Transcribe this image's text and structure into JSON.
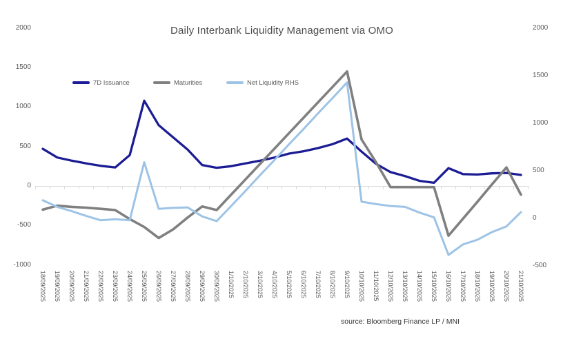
{
  "title": "Daily Interbank Liquidity Management via OMO",
  "footer": {
    "source": "source: Bloomberg Finance LP / MNI"
  },
  "colors": {
    "grid": "#d9d9d9",
    "axis_text": "#595959",
    "title_text": "#4d4d4d",
    "issuance": "#1c1c94",
    "maturities": "#808080",
    "net_liquidity": "#9dc3e6"
  },
  "chart_data": {
    "type": "line",
    "title": "Daily Interbank Liquidity Management via OMO",
    "xlabel": "",
    "ylabel_left": "",
    "ylabel_right": "",
    "grid": "zero-line-only",
    "legend_position": "top-inside",
    "categories": [
      "18/09/2025",
      "19/09/2025",
      "20/09/2025",
      "21/09/2025",
      "22/09/2025",
      "23/09/2025",
      "24/09/2025",
      "25/09/2025",
      "26/09/2025",
      "27/09/2025",
      "28/09/2025",
      "29/09/2025",
      "30/09/2025",
      "1/10/2025",
      "2/10/2025",
      "3/10/2025",
      "4/10/2025",
      "5/10/2025",
      "6/10/2025",
      "7/10/2025",
      "8/10/2025",
      "9/10/2025",
      "10/10/2025",
      "11/10/2025",
      "12/10/2025",
      "13/10/2025",
      "14/10/2025",
      "15/10/2025",
      "16/10/2025",
      "17/10/2025",
      "18/10/2025",
      "19/10/2025",
      "20/10/2025",
      "21/10/2025"
    ],
    "left_axis": {
      "ticks": [
        2000,
        1500,
        1000,
        500,
        0,
        -500,
        -1000
      ],
      "range": [
        -1000,
        2000
      ]
    },
    "right_axis": {
      "ticks": [
        2000,
        1500,
        1000,
        500,
        0,
        -500
      ],
      "range": [
        -500,
        2000
      ]
    },
    "series": [
      {
        "name": "7D Issuance",
        "axis": "left",
        "color": "#1c1c94",
        "values": [
          470,
          360,
          320,
          285,
          255,
          235,
          390,
          1080,
          770,
          615,
          460,
          265,
          230,
          250,
          285,
          320,
          360,
          410,
          440,
          480,
          530,
          600,
          435,
          280,
          175,
          125,
          65,
          40,
          225,
          150,
          145,
          160,
          165,
          140
        ]
      },
      {
        "name": "Maturities",
        "axis": "left",
        "color": "#808080",
        "values": [
          -300,
          -250,
          -265,
          -275,
          -290,
          -305,
          -420,
          -520,
          -660,
          -550,
          -400,
          -260,
          -305,
          -110,
          85,
          280,
          475,
          670,
          865,
          1060,
          1255,
          1450,
          590,
          300,
          -15,
          -15,
          -15,
          -15,
          -630,
          -415,
          -200,
          20,
          235,
          -110
        ]
      },
      {
        "name": "Net Liquidity RHS",
        "axis": "right",
        "color": "#9dc3e6",
        "values": [
          190,
          120,
          75,
          25,
          -20,
          -10,
          -20,
          590,
          100,
          110,
          115,
          20,
          -30,
          130,
          290,
          455,
          615,
          780,
          940,
          1105,
          1265,
          1430,
          175,
          150,
          130,
          120,
          60,
          10,
          -385,
          -275,
          -225,
          -145,
          -85,
          65
        ]
      }
    ]
  }
}
